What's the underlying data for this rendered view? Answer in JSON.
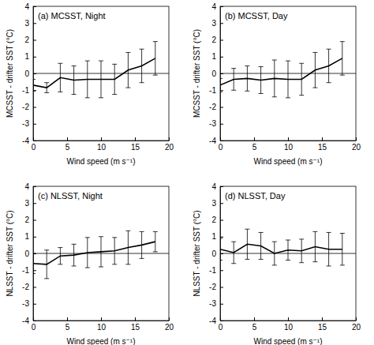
{
  "chart_data": [
    {
      "type": "line",
      "title": "(a) MCSST, Night",
      "xlabel": "Wind speed (m s⁻¹)",
      "ylabel": "MCSST - drifter SST (°C)",
      "x": [
        0,
        2,
        4,
        6,
        8,
        10,
        12,
        14,
        16,
        18
      ],
      "values": [
        -0.7,
        -0.85,
        -0.25,
        -0.4,
        -0.35,
        -0.35,
        -0.35,
        0.2,
        0.45,
        0.9
      ],
      "errors": [
        0.35,
        0.3,
        0.85,
        0.85,
        1.1,
        1.1,
        0.9,
        1.05,
        1.0,
        1.0
      ],
      "reference_line": 0,
      "color": "#000000",
      "xlim": [
        0,
        20
      ],
      "xticks": [
        0,
        5,
        10,
        15,
        20
      ],
      "ylim": [
        -4,
        4
      ],
      "yticks": [
        -4,
        -3,
        -2,
        -1,
        0,
        1,
        2,
        3,
        4
      ]
    },
    {
      "type": "line",
      "title": "(b) MCSST, Day",
      "xlabel": "Wind speed (m s⁻¹)",
      "ylabel": "MCSST - drifter SST (°C)",
      "x": [
        0,
        2,
        4,
        6,
        8,
        10,
        12,
        14,
        16,
        18
      ],
      "values": [
        -0.7,
        -0.35,
        -0.3,
        -0.4,
        -0.3,
        -0.35,
        -0.35,
        0.2,
        0.45,
        0.9
      ],
      "errors": [
        0.4,
        0.65,
        0.75,
        0.8,
        1.1,
        1.1,
        0.95,
        1.05,
        1.0,
        1.0
      ],
      "reference_line": 0,
      "color": "#000000",
      "xlim": [
        0,
        20
      ],
      "xticks": [
        0,
        5,
        10,
        15,
        20
      ],
      "ylim": [
        -4,
        4
      ],
      "yticks": [
        -4,
        -3,
        -2,
        -1,
        0,
        1,
        2,
        3,
        4
      ]
    },
    {
      "type": "line",
      "title": "(c) NLSST, Night",
      "xlabel": "Wind speed (m s⁻¹)",
      "ylabel": "NLSST - drifter SST (°C)",
      "x": [
        0,
        2,
        4,
        6,
        8,
        10,
        12,
        14,
        16,
        18
      ],
      "values": [
        -0.6,
        -0.65,
        -0.15,
        -0.1,
        0.05,
        0.1,
        0.15,
        0.35,
        0.5,
        0.7
      ],
      "errors": [
        0.6,
        0.85,
        0.5,
        0.65,
        0.9,
        0.9,
        0.8,
        1.0,
        0.8,
        0.6
      ],
      "reference_line": 0,
      "color": "#000000",
      "xlim": [
        0,
        20
      ],
      "xticks": [
        0,
        5,
        10,
        15,
        20
      ],
      "ylim": [
        -4,
        4
      ],
      "yticks": [
        -4,
        -3,
        -2,
        -1,
        0,
        1,
        2,
        3,
        4
      ]
    },
    {
      "type": "line",
      "title": "(d) NLSST, Day",
      "xlabel": "Wind speed (m s⁻¹)",
      "ylabel": "NLSST - drifter SST (°C)",
      "x": [
        0,
        2,
        4,
        6,
        8,
        10,
        12,
        14,
        16,
        18
      ],
      "values": [
        0.25,
        0.05,
        0.55,
        0.45,
        0.0,
        0.2,
        0.15,
        0.4,
        0.25,
        0.25
      ],
      "errors": [
        0.65,
        0.65,
        0.9,
        0.8,
        0.7,
        0.6,
        0.7,
        0.9,
        1.0,
        0.95
      ],
      "reference_line": 0,
      "color": "#000000",
      "xlim": [
        0,
        20
      ],
      "xticks": [
        0,
        5,
        10,
        15,
        20
      ],
      "ylim": [
        -4,
        4
      ],
      "yticks": [
        -4,
        -3,
        -2,
        -1,
        0,
        1,
        2,
        3,
        4
      ]
    }
  ]
}
